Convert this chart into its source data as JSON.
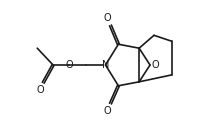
{
  "bg_color": "#ffffff",
  "line_color": "#1a1a1a",
  "line_width": 1.2,
  "font_size": 7.0,
  "fig_width": 2.13,
  "fig_height": 1.3,
  "dpi": 100,
  "xlim": [
    0,
    10.5
  ],
  "ylim": [
    0,
    6.5
  ]
}
